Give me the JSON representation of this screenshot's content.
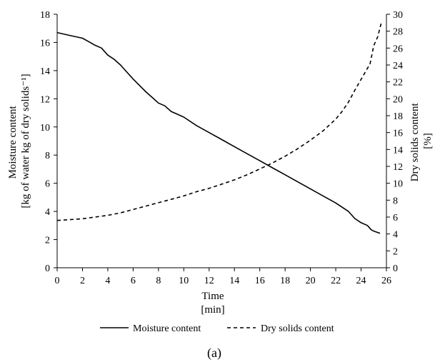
{
  "chart_data": {
    "type": "line",
    "caption": "(a)",
    "xlabel": [
      "Time",
      "[min]"
    ],
    "ylabel_left": [
      "Moisture content",
      "[kg of water kg of dry solids⁻¹]"
    ],
    "ylabel_right": [
      "Dry solids content",
      "[%]"
    ],
    "xlim": [
      0,
      26
    ],
    "ylim_left": [
      0,
      18
    ],
    "ylim_right": [
      0,
      30
    ],
    "x_ticks": [
      0,
      2,
      4,
      6,
      8,
      10,
      12,
      14,
      16,
      18,
      20,
      22,
      24,
      26
    ],
    "y_ticks_left": [
      0,
      2,
      4,
      6,
      8,
      10,
      12,
      14,
      16,
      18
    ],
    "y_ticks_right": [
      0,
      2,
      4,
      6,
      8,
      10,
      12,
      14,
      16,
      18,
      20,
      22,
      24,
      26,
      28,
      30
    ],
    "grid": false,
    "legend_position": "bottom",
    "series": [
      {
        "name": "Moisture content",
        "axis": "left",
        "style": "solid",
        "color": "#000000",
        "x": [
          0,
          1,
          2,
          3,
          3.5,
          4,
          4.5,
          5,
          5.5,
          6,
          7,
          7.5,
          8,
          8.5,
          9,
          9.5,
          10,
          11,
          12,
          13,
          14,
          15,
          16,
          17,
          18,
          19,
          20,
          21,
          22,
          23,
          23.5,
          24,
          24.5,
          24.8,
          25,
          25.5
        ],
        "y": [
          16.7,
          16.5,
          16.3,
          15.8,
          15.6,
          15.1,
          14.8,
          14.4,
          13.9,
          13.4,
          12.5,
          12.1,
          11.7,
          11.5,
          11.1,
          10.9,
          10.7,
          10.1,
          9.6,
          9.1,
          8.6,
          8.1,
          7.6,
          7.1,
          6.6,
          6.1,
          5.6,
          5.1,
          4.6,
          4.0,
          3.5,
          3.2,
          3.0,
          2.7,
          2.6,
          2.45
        ]
      },
      {
        "name": "Dry solids content",
        "axis": "right",
        "style": "dashed",
        "color": "#000000",
        "x": [
          0,
          1,
          2,
          3,
          4,
          5,
          6,
          7,
          8,
          9,
          10,
          11,
          12,
          13,
          14,
          15,
          16,
          17,
          18,
          19,
          20,
          21,
          22,
          22.5,
          23,
          23.5,
          24,
          24.5,
          24.7,
          25,
          25.3,
          25.6
        ],
        "y": [
          5.6,
          5.7,
          5.8,
          6.0,
          6.2,
          6.5,
          6.9,
          7.3,
          7.7,
          8.1,
          8.5,
          9.0,
          9.4,
          9.9,
          10.4,
          11.0,
          11.7,
          12.4,
          13.2,
          14.1,
          15.1,
          16.2,
          17.6,
          18.5,
          19.6,
          21.0,
          22.3,
          23.6,
          24.1,
          26.3,
          27.3,
          29.0
        ]
      }
    ]
  }
}
